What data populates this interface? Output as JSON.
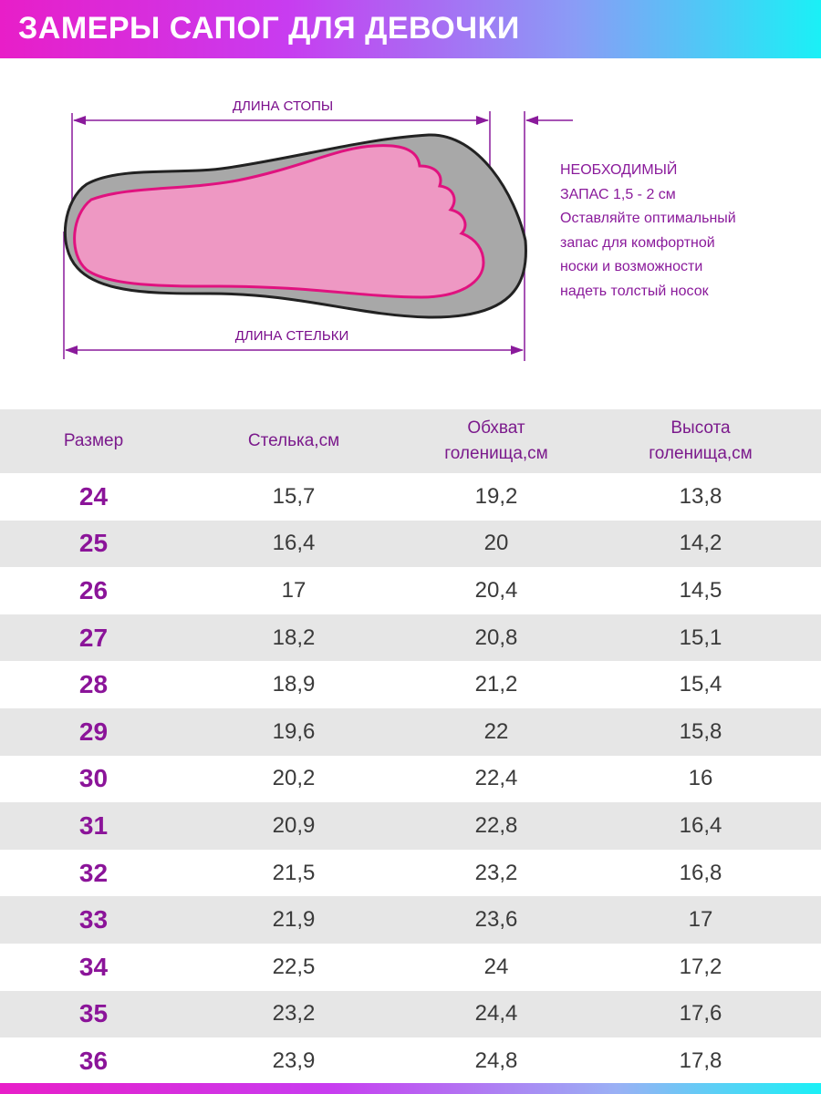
{
  "header": {
    "title": "ЗАМЕРЫ САПОГ ДЛЯ ДЕВОЧКИ",
    "gradient_start": "#e81ec8",
    "gradient_end": "#1af0f6"
  },
  "diagram": {
    "foot_length_label": "ДЛИНА СТОПЫ",
    "insole_length_label": "ДЛИНА СТЕЛЬКИ",
    "note_lines": [
      "НЕОБХОДИМЫЙ",
      "ЗАПАС 1,5 - 2 см",
      "Оставляйте оптимальный",
      "запас для комфортной",
      "носки и возможности",
      "надеть толстый носок"
    ],
    "colors": {
      "insole": "#a8a8a8",
      "foot_fill": "#ee98c3",
      "foot_outline": "#e0127f",
      "arrow": "#8a1a9b"
    }
  },
  "table": {
    "headers": [
      [
        "Размер"
      ],
      [
        "Стелька,см"
      ],
      [
        "Обхват",
        "голенища,см"
      ],
      [
        "Высота",
        "голенища,см"
      ]
    ],
    "rows": [
      [
        "24",
        "15,7",
        "19,2",
        "13,8"
      ],
      [
        "25",
        "16,4",
        "20",
        "14,2"
      ],
      [
        "26",
        "17",
        "20,4",
        "14,5"
      ],
      [
        "27",
        "18,2",
        "20,8",
        "15,1"
      ],
      [
        "28",
        "18,9",
        "21,2",
        "15,4"
      ],
      [
        "29",
        "19,6",
        "22",
        "15,8"
      ],
      [
        "30",
        "20,2",
        "22,4",
        "16"
      ],
      [
        "31",
        "20,9",
        "22,8",
        "16,4"
      ],
      [
        "32",
        "21,5",
        "23,2",
        "16,8"
      ],
      [
        "33",
        "21,9",
        "23,6",
        "17"
      ],
      [
        "34",
        "22,5",
        "24",
        "17,2"
      ],
      [
        "35",
        "23,2",
        "24,4",
        "17,6"
      ],
      [
        "36",
        "23,9",
        "24,8",
        "17,8"
      ]
    ]
  }
}
